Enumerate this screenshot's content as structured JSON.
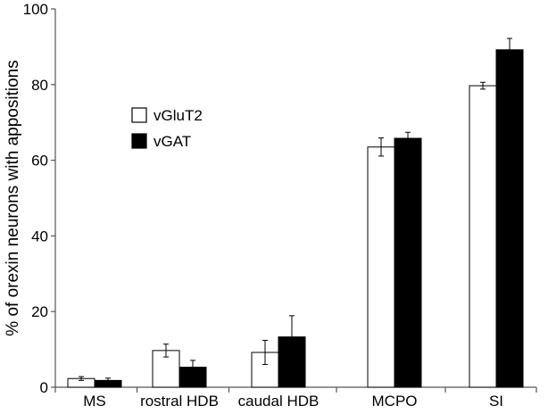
{
  "chart_data": {
    "type": "bar",
    "ylabel": "% of orexin neurons with appositions",
    "xlabel": "",
    "ylim": [
      0,
      100
    ],
    "yticks": [
      0,
      20,
      40,
      60,
      80,
      100
    ],
    "grid": false,
    "legend_position": "upper-left",
    "categories": [
      "MS",
      "rostral HDB",
      "caudal HDB",
      "MCPO",
      "SI"
    ],
    "series": [
      {
        "name": "vGluT2",
        "fill": "#ffffff",
        "stroke": "#000000",
        "values": [
          2.3,
          9.7,
          9.2,
          63.5,
          79.7
        ],
        "errors": [
          0.5,
          1.7,
          3.2,
          2.4,
          0.9
        ]
      },
      {
        "name": "vGAT",
        "fill": "#000000",
        "stroke": "#000000",
        "values": [
          1.8,
          5.3,
          13.3,
          65.8,
          89.2
        ],
        "errors": [
          0.6,
          1.8,
          5.6,
          1.6,
          3.0
        ]
      }
    ]
  }
}
